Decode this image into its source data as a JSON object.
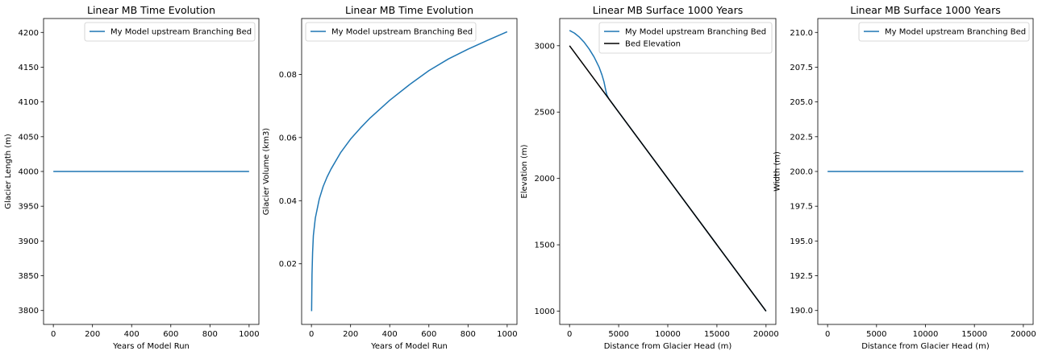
{
  "colors": {
    "series_blue": "#1f77b4",
    "bed_black": "#000000",
    "legend_border": "#cccccc",
    "axes": "#000000"
  },
  "chart_data": [
    {
      "type": "line",
      "title": "Linear MB Time Evolution",
      "xlabel": "Years of Model Run",
      "ylabel": "Glacier Length (m)",
      "xlim": [
        -50,
        1050
      ],
      "ylim": [
        3780,
        4220
      ],
      "xticks": [
        0,
        200,
        400,
        600,
        800,
        1000
      ],
      "xtick_labels": [
        "0",
        "200",
        "400",
        "600",
        "800",
        "1000"
      ],
      "yticks": [
        3800,
        3850,
        3900,
        3950,
        4000,
        4050,
        4100,
        4150,
        4200
      ],
      "ytick_labels": [
        "3800",
        "3850",
        "3900",
        "3950",
        "4000",
        "4050",
        "4100",
        "4150",
        "4200"
      ],
      "legend_position": "upper right",
      "series": [
        {
          "name": "My Model upstream Branching Bed",
          "color": "#1f77b4",
          "x": [
            0,
            1000
          ],
          "y": [
            4000,
            4000
          ]
        }
      ]
    },
    {
      "type": "line",
      "title": "Linear MB Time Evolution",
      "xlabel": "Years of Model Run",
      "ylabel": "Glacier Volume (km3)",
      "xlim": [
        -50,
        1050
      ],
      "ylim": [
        0.0008,
        0.0977
      ],
      "xticks": [
        0,
        200,
        400,
        600,
        800,
        1000
      ],
      "xtick_labels": [
        "0",
        "200",
        "400",
        "600",
        "800",
        "1000"
      ],
      "yticks": [
        0.02,
        0.04,
        0.06,
        0.08
      ],
      "ytick_labels": [
        "0.02",
        "0.04",
        "0.06",
        "0.08"
      ],
      "legend_position": "upper left",
      "series": [
        {
          "name": "My Model upstream Branching Bed",
          "color": "#1f77b4",
          "x": [
            1,
            3,
            6,
            10,
            20,
            40,
            60,
            80,
            100,
            150,
            200,
            250,
            300,
            400,
            500,
            600,
            700,
            800,
            900,
            1000
          ],
          "y": [
            0.005,
            0.0165,
            0.0235,
            0.029,
            0.0345,
            0.0405,
            0.0445,
            0.0475,
            0.05,
            0.0553,
            0.0595,
            0.063,
            0.0662,
            0.0718,
            0.0767,
            0.0812,
            0.0849,
            0.088,
            0.0908,
            0.0935
          ]
        }
      ]
    },
    {
      "type": "line",
      "title": "Linear MB Surface 1000 Years",
      "xlabel": "Distance from Glacier Head (m)",
      "ylabel": "Elevation (m)",
      "xlim": [
        -1000,
        21000
      ],
      "ylim": [
        900,
        3205
      ],
      "xticks": [
        0,
        5000,
        10000,
        15000,
        20000
      ],
      "xtick_labels": [
        "0",
        "5000",
        "10000",
        "15000",
        "20000"
      ],
      "yticks": [
        1000,
        1500,
        2000,
        2500,
        3000
      ],
      "ytick_labels": [
        "1000",
        "1500",
        "2000",
        "2500",
        "3000"
      ],
      "legend_position": "upper right",
      "series": [
        {
          "name": "My Model upstream Branching Bed",
          "color": "#1f77b4",
          "x": [
            0,
            500,
            1000,
            1500,
            2000,
            2500,
            3000,
            3300,
            3500,
            3700,
            3800,
            4000,
            20000
          ],
          "y": [
            3115,
            3095,
            3065,
            3025,
            2975,
            2915,
            2840,
            2780,
            2730,
            2660,
            2630,
            2600,
            1000
          ]
        },
        {
          "name": "Bed Elevation",
          "color": "#000000",
          "x": [
            0,
            20000
          ],
          "y": [
            3000,
            1000
          ]
        }
      ]
    },
    {
      "type": "line",
      "title": "Linear MB Surface 1000 Years",
      "xlabel": "Distance from Glacier Head (m)",
      "ylabel": "Width (m)",
      "xlim": [
        -1000,
        21000
      ],
      "ylim": [
        189,
        211
      ],
      "xticks": [
        0,
        5000,
        10000,
        15000,
        20000
      ],
      "xtick_labels": [
        "0",
        "5000",
        "10000",
        "15000",
        "20000"
      ],
      "yticks": [
        190.0,
        192.5,
        195.0,
        197.5,
        200.0,
        202.5,
        205.0,
        207.5,
        210.0
      ],
      "ytick_labels": [
        "190.0",
        "192.5",
        "195.0",
        "197.5",
        "200.0",
        "202.5",
        "205.0",
        "207.5",
        "210.0"
      ],
      "legend_position": "upper right",
      "series": [
        {
          "name": "My Model upstream Branching Bed",
          "color": "#1f77b4",
          "x": [
            0,
            20000
          ],
          "y": [
            200,
            200
          ]
        }
      ]
    }
  ]
}
